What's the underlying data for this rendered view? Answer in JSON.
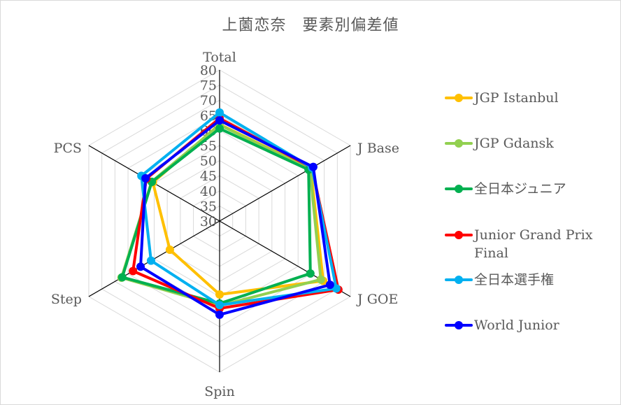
{
  "chart_data": {
    "type": "radar",
    "title": "上薗恋奈　要素別偏差値",
    "axes": [
      "Total",
      "J Base",
      "J GOE",
      "Spin",
      "Step",
      "PCS"
    ],
    "radial_ticks": [
      30,
      35,
      40,
      45,
      50,
      55,
      60,
      65,
      70,
      75,
      80
    ],
    "rlim": [
      30,
      80
    ],
    "grid": true,
    "legend_position": "right",
    "series": [
      {
        "name": "JGP Istanbul",
        "color": "#FFC000",
        "values": [
          62.0,
          64.8,
          69.6,
          54.3,
          49.0,
          55.5
        ]
      },
      {
        "name": "JGP Gdansk",
        "color": "#92D050",
        "values": [
          61.8,
          64.5,
          68.7,
          58.0,
          67.5,
          56.0
        ]
      },
      {
        "name": "全日本ジュニア",
        "color": "#00B050",
        "values": [
          60.6,
          64.0,
          64.7,
          57.3,
          67.2,
          55.9
        ]
      },
      {
        "name": "Junior Grand Prix Final",
        "color": "#FF0000",
        "values": [
          64.0,
          65.3,
          75.4,
          58.9,
          63.1,
          58.0
        ]
      },
      {
        "name": "全日本選手権",
        "color": "#00B0F0",
        "values": [
          65.9,
          65.3,
          74.6,
          57.8,
          56.2,
          59.9
        ]
      },
      {
        "name": "World Junior",
        "color": "#0000FF",
        "values": [
          63.3,
          65.8,
          72.2,
          61.0,
          60.2,
          58.3
        ]
      }
    ]
  },
  "legend": {
    "items": [
      {
        "label": "JGP Istanbul",
        "color": "#FFC000"
      },
      {
        "label": "JGP Gdansk",
        "color": "#92D050"
      },
      {
        "label": "全日本ジュニア",
        "color": "#00B050"
      },
      {
        "label": "Junior Grand Prix Final",
        "color": "#FF0000"
      },
      {
        "label": "全日本選手権",
        "color": "#00B0F0"
      },
      {
        "label": "World Junior",
        "color": "#0000FF"
      }
    ]
  }
}
